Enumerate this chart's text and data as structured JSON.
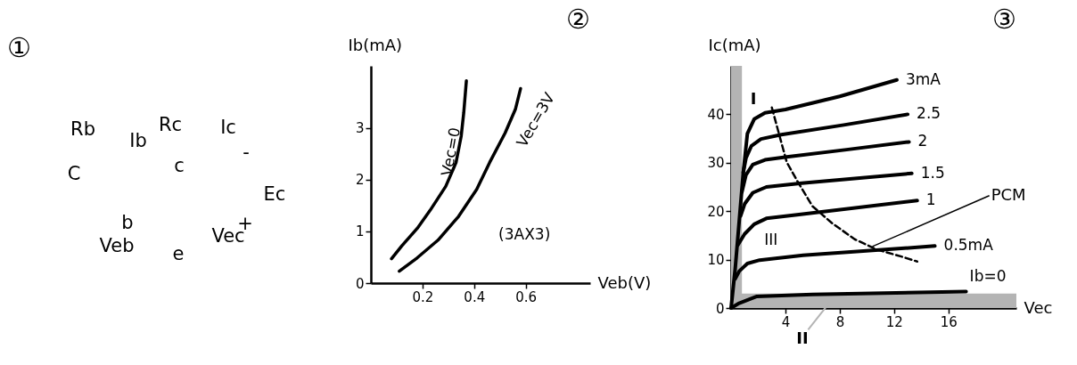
{
  "chart_data": [
    {
      "type": "other",
      "title": "①",
      "annotations": [
        "Rb",
        "Ib",
        "Rc",
        "Ic",
        "-",
        "C",
        "c",
        "b",
        "Veb",
        "e",
        "Vec",
        "+",
        "Ec"
      ]
    },
    {
      "type": "line",
      "title": "②",
      "xlabel": "Veb(V)",
      "ylabel": "Ib(mA)",
      "xlim": [
        0,
        0.85
      ],
      "ylim": [
        0,
        4.2
      ],
      "xticks": [
        0.2,
        0.4,
        0.6
      ],
      "yticks": [
        0,
        1,
        2,
        3
      ],
      "annotations": [
        "(3AX3)"
      ],
      "series": [
        {
          "name": "Vec=0",
          "color": "#000000",
          "x": [
            0.08,
            0.12,
            0.18,
            0.23,
            0.29,
            0.33,
            0.35,
            0.36,
            0.37
          ],
          "values": [
            0.47,
            0.72,
            1.06,
            1.41,
            1.87,
            2.33,
            2.84,
            3.3,
            3.91
          ]
        },
        {
          "name": "Vec=3V",
          "color": "#000000",
          "x": [
            0.11,
            0.18,
            0.26,
            0.34,
            0.41,
            0.46,
            0.52,
            0.56,
            0.58
          ],
          "values": [
            0.23,
            0.49,
            0.83,
            1.29,
            1.81,
            2.33,
            2.9,
            3.36,
            3.76
          ]
        }
      ]
    },
    {
      "type": "line",
      "title": "③",
      "xlabel": "Vec",
      "ylabel": "Ic(mA)",
      "xlim": [
        0,
        21
      ],
      "ylim": [
        0,
        50
      ],
      "xticks": [
        4,
        8,
        12,
        16
      ],
      "yticks": [
        0,
        10,
        20,
        30,
        40
      ],
      "bands": [
        {
          "axis": "x",
          "from": 0,
          "to": 0.8,
          "label": "I",
          "color": "#b4b4b4"
        },
        {
          "axis": "y",
          "from": 0,
          "to": 3,
          "label": "II",
          "color": "#b4b4b4"
        }
      ],
      "annotations": [
        {
          "text": "PCM",
          "x": 10.4,
          "y": 12.7
        },
        "III"
      ],
      "series": [
        {
          "name": "3mA",
          "color": "#000000",
          "x": [
            0,
            0.3,
            0.6,
            0.9,
            1.2,
            1.7,
            2.5,
            4,
            8,
            12.2
          ],
          "values": [
            0,
            8,
            18,
            28,
            36,
            39,
            40.3,
            41,
            43.7,
            47.1
          ]
        },
        {
          "name": "2.5",
          "color": "#000000",
          "x": [
            0.9,
            1.1,
            1.5,
            2.2,
            3.7,
            8.3,
            13
          ],
          "values": [
            28,
            31,
            33.5,
            34.9,
            35.8,
            37.8,
            40
          ]
        },
        {
          "name": "2",
          "color": "#000000",
          "x": [
            0.8,
            1.1,
            1.6,
            2.5,
            4.1,
            8.5,
            13.1
          ],
          "values": [
            24,
            27.5,
            29.6,
            30.6,
            31.2,
            32.7,
            34.3
          ]
        },
        {
          "name": "1.5",
          "color": "#000000",
          "x": [
            0.7,
            1,
            1.6,
            2.6,
            5.2,
            13.3
          ],
          "values": [
            19,
            21.5,
            23.8,
            25,
            25.8,
            27.8
          ]
        },
        {
          "name": "1",
          "color": "#000000",
          "x": [
            0.5,
            1,
            1.7,
            2.6,
            5,
            13.7
          ],
          "values": [
            13,
            15.3,
            17.3,
            18.5,
            19.3,
            22.2
          ]
        },
        {
          "name": "0.5mA",
          "color": "#000000",
          "x": [
            0.3,
            0.6,
            1.2,
            2.1,
            5.3,
            15
          ],
          "values": [
            6,
            7.6,
            9.2,
            9.9,
            10.9,
            12.8
          ]
        },
        {
          "name": "Ib=0",
          "color": "#000000",
          "x": [
            0,
            0.6,
            1.9,
            6,
            17.3
          ],
          "values": [
            0,
            1,
            2.4,
            2.8,
            3.4
          ]
        },
        {
          "color": "#000000",
          "line_style": "dashed",
          "x": [
            3,
            3.6,
            4.1,
            4.9,
            6,
            7.4,
            9.1,
            10.7,
            12.7,
            13.7
          ],
          "values": [
            41.4,
            35.2,
            30.1,
            26.1,
            21,
            17.6,
            14.2,
            12.1,
            10.5,
            9.6
          ]
        }
      ]
    }
  ]
}
